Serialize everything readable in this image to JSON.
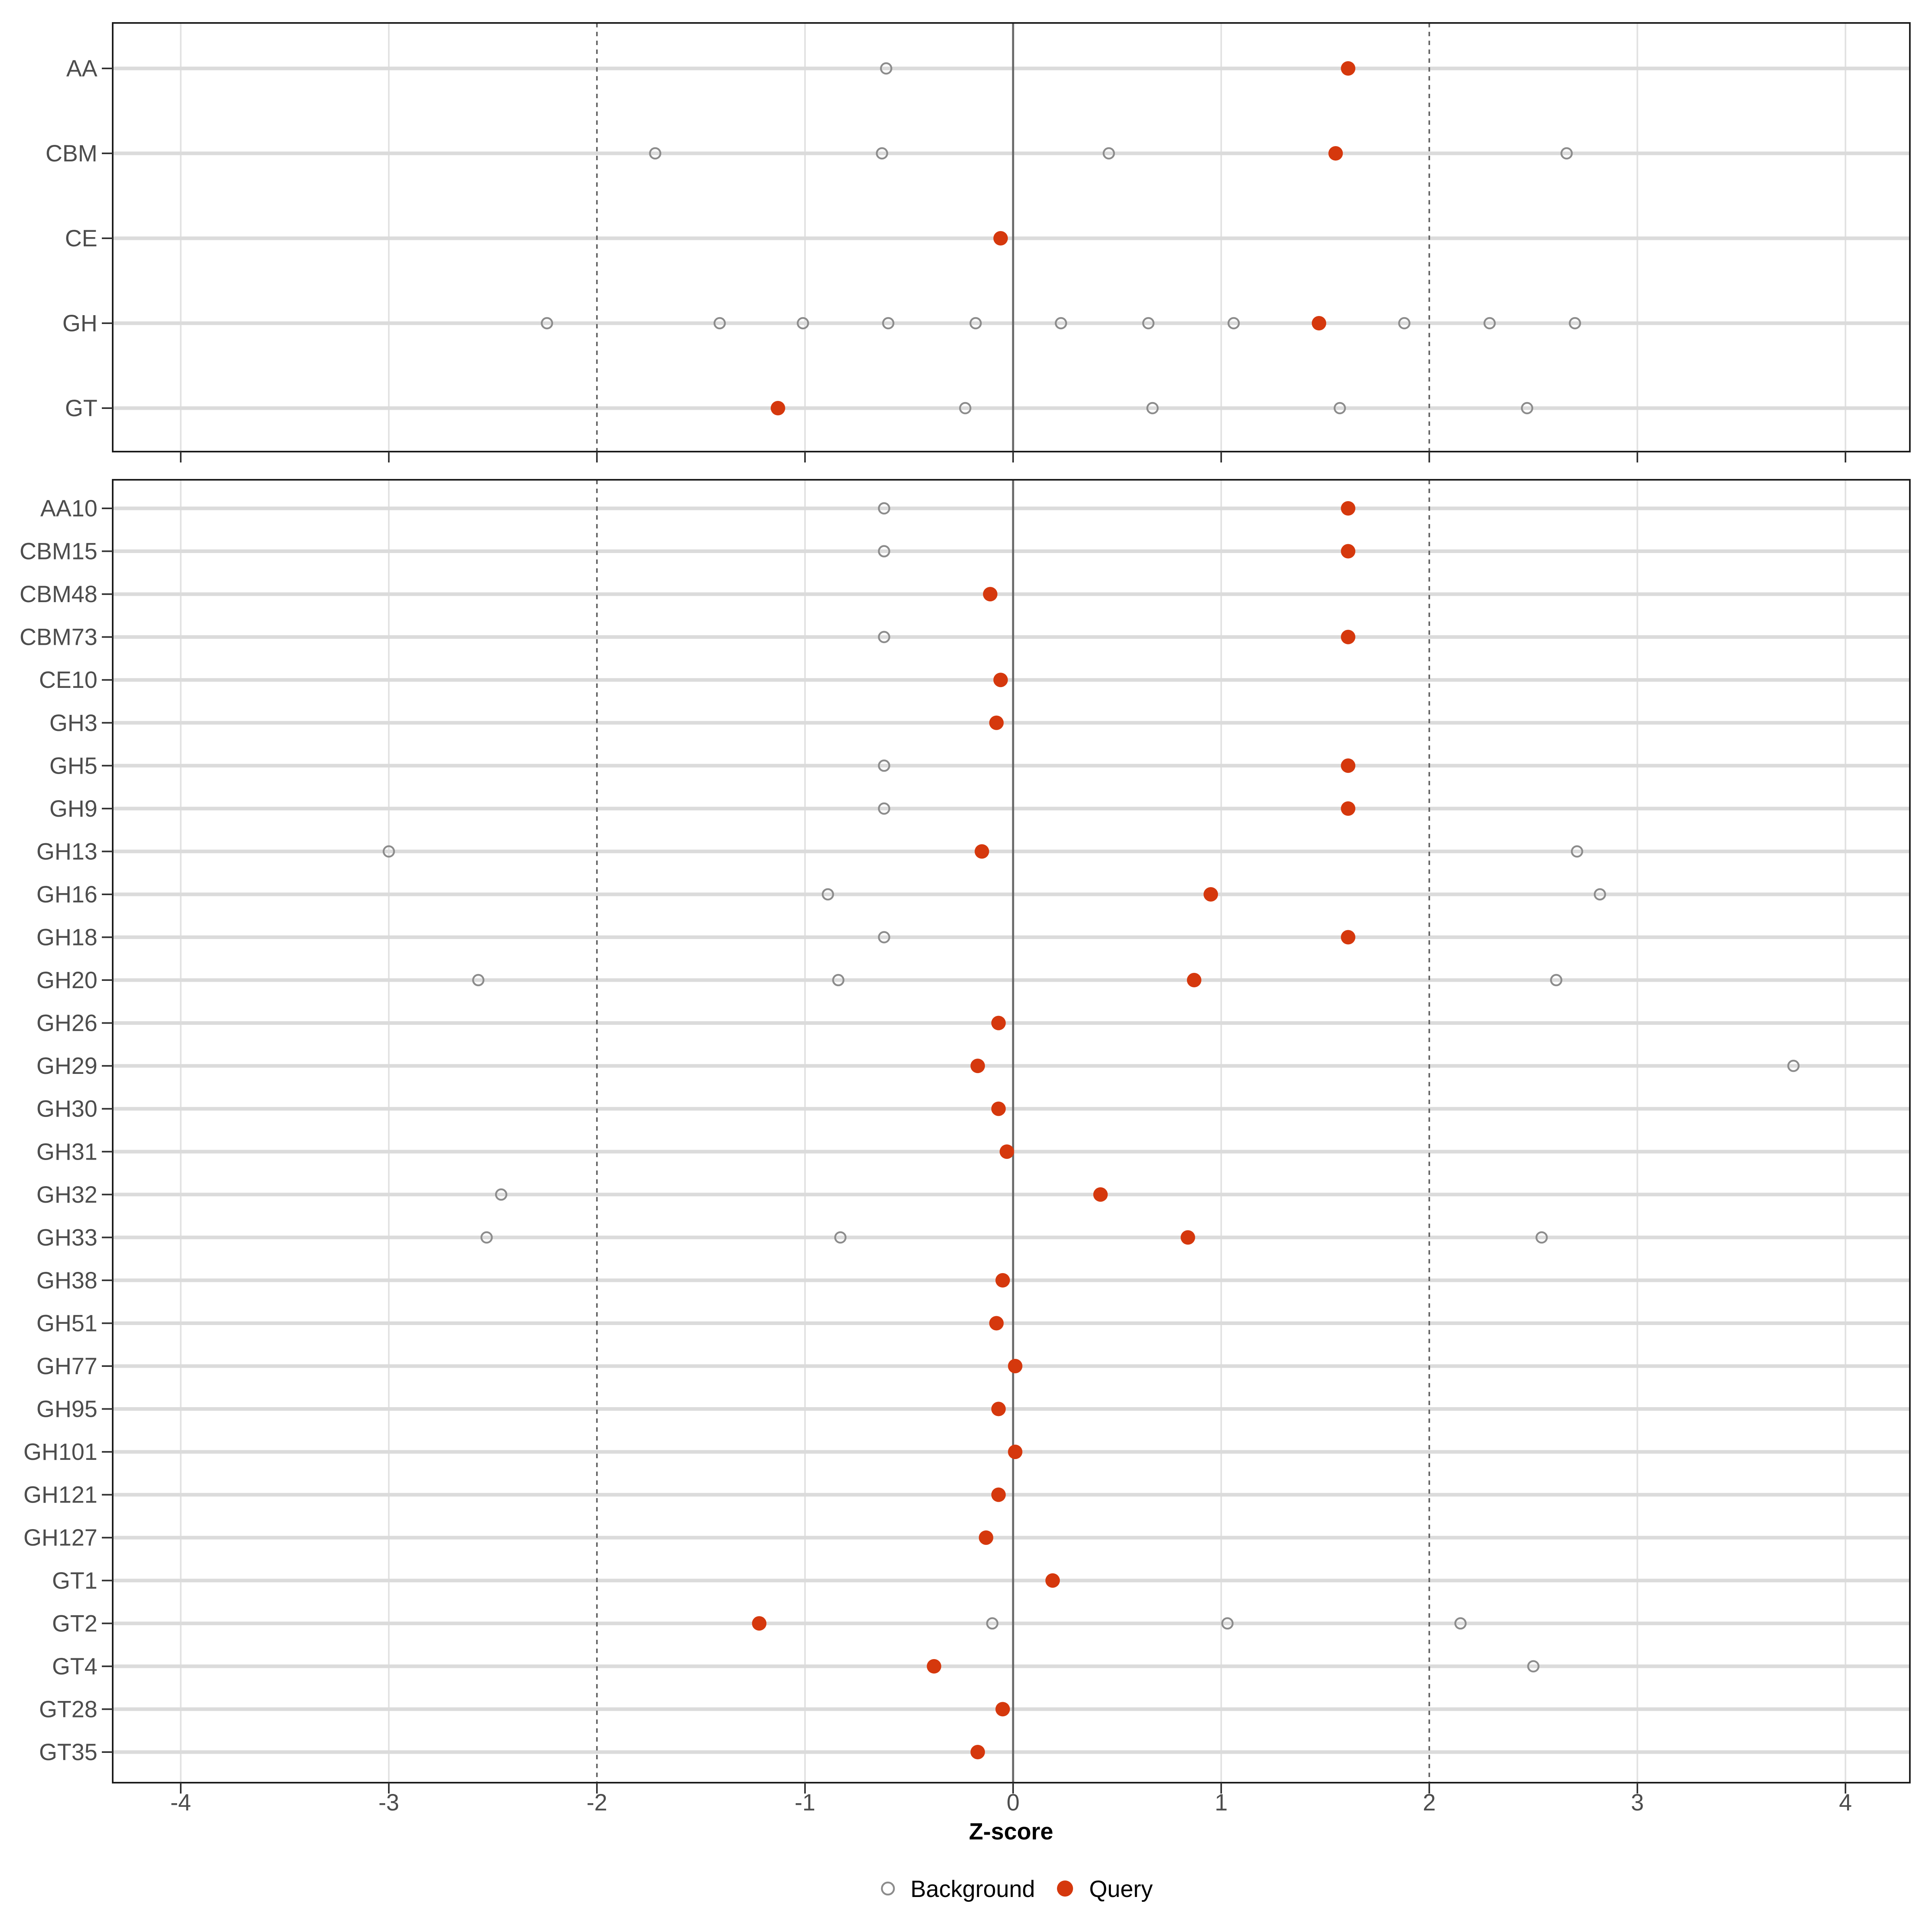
{
  "chart_data": {
    "type": "scatter",
    "subtype": "cleveland-dot-plot",
    "title": "",
    "xlabel": "Z-score",
    "ylabel": "",
    "xlim": [
      -4.33,
      4.31
    ],
    "x_ticks": [
      -4,
      -3,
      -2,
      -1,
      0,
      1,
      2,
      3,
      4
    ],
    "grid": true,
    "reference_lines": {
      "solid": 0,
      "dashed": [
        -2,
        2
      ]
    },
    "legend_position": "bottom",
    "legend": [
      {
        "label": "Background",
        "marker": "open-circle"
      },
      {
        "label": "Query",
        "marker": "filled-circle"
      }
    ],
    "colors": {
      "query": "#D5380D",
      "background": "#8C8C8C",
      "grid": "#E2E2E2",
      "row_line": "#DBDBDB",
      "reference": "#666666",
      "axis_text": "#4D4D4D",
      "border": "#1A1A1A"
    },
    "panels": [
      {
        "name": "families",
        "rows": [
          {
            "label": "AA",
            "background": [
              -0.61
            ],
            "query": [
              1.61
            ]
          },
          {
            "label": "CBM",
            "background": [
              -1.72,
              -0.63,
              0.46,
              2.66
            ],
            "query": [
              1.55
            ]
          },
          {
            "label": "CE",
            "background": [],
            "query": [
              -0.06
            ]
          },
          {
            "label": "GH",
            "background": [
              -2.24,
              -1.41,
              -1.01,
              -0.6,
              -0.18,
              0.23,
              0.65,
              1.06,
              1.88,
              2.29,
              2.7
            ],
            "query": [
              1.47
            ]
          },
          {
            "label": "GT",
            "background": [
              -0.23,
              0.67,
              1.57,
              2.47
            ],
            "query": [
              -1.13
            ]
          }
        ]
      },
      {
        "name": "subfamilies",
        "rows": [
          {
            "label": "AA10",
            "background": [
              -0.62
            ],
            "query": [
              1.61
            ]
          },
          {
            "label": "CBM15",
            "background": [
              -0.62
            ],
            "query": [
              1.61
            ]
          },
          {
            "label": "CBM48",
            "background": [],
            "query": [
              -0.11
            ]
          },
          {
            "label": "CBM73",
            "background": [
              -0.62
            ],
            "query": [
              1.61
            ]
          },
          {
            "label": "CE10",
            "background": [],
            "query": [
              -0.06
            ]
          },
          {
            "label": "GH3",
            "background": [],
            "query": [
              -0.08
            ]
          },
          {
            "label": "GH5",
            "background": [
              -0.62
            ],
            "query": [
              1.61
            ]
          },
          {
            "label": "GH9",
            "background": [
              -0.62
            ],
            "query": [
              1.61
            ]
          },
          {
            "label": "GH13",
            "background": [
              -3.0,
              2.71
            ],
            "query": [
              -0.15
            ]
          },
          {
            "label": "GH16",
            "background": [
              -0.89,
              2.82
            ],
            "query": [
              0.95
            ]
          },
          {
            "label": "GH18",
            "background": [
              -0.62
            ],
            "query": [
              1.61
            ]
          },
          {
            "label": "GH20",
            "background": [
              -2.57,
              -0.84,
              2.61
            ],
            "query": [
              0.87
            ]
          },
          {
            "label": "GH26",
            "background": [],
            "query": [
              -0.07
            ]
          },
          {
            "label": "GH29",
            "background": [
              3.75
            ],
            "query": [
              -0.17
            ]
          },
          {
            "label": "GH30",
            "background": [],
            "query": [
              -0.07
            ]
          },
          {
            "label": "GH31",
            "background": [],
            "query": [
              -0.03
            ]
          },
          {
            "label": "GH32",
            "background": [
              -2.46
            ],
            "query": [
              0.42
            ]
          },
          {
            "label": "GH33",
            "background": [
              -2.53,
              -0.83,
              2.54
            ],
            "query": [
              0.84
            ]
          },
          {
            "label": "GH38",
            "background": [],
            "query": [
              -0.05
            ]
          },
          {
            "label": "GH51",
            "background": [],
            "query": [
              -0.08
            ]
          },
          {
            "label": "GH77",
            "background": [],
            "query": [
              0.01
            ]
          },
          {
            "label": "GH95",
            "background": [],
            "query": [
              -0.07
            ]
          },
          {
            "label": "GH101",
            "background": [],
            "query": [
              0.01
            ]
          },
          {
            "label": "GH121",
            "background": [],
            "query": [
              -0.07
            ]
          },
          {
            "label": "GH127",
            "background": [],
            "query": [
              -0.13
            ]
          },
          {
            "label": "GT1",
            "background": [],
            "query": [
              0.19
            ]
          },
          {
            "label": "GT2",
            "background": [
              -0.1,
              1.03,
              2.15
            ],
            "query": [
              -1.22
            ]
          },
          {
            "label": "GT4",
            "background": [
              2.5
            ],
            "query": [
              -0.38
            ]
          },
          {
            "label": "GT28",
            "background": [],
            "query": [
              -0.05
            ]
          },
          {
            "label": "GT35",
            "background": [],
            "query": [
              -0.17
            ]
          }
        ]
      }
    ]
  }
}
